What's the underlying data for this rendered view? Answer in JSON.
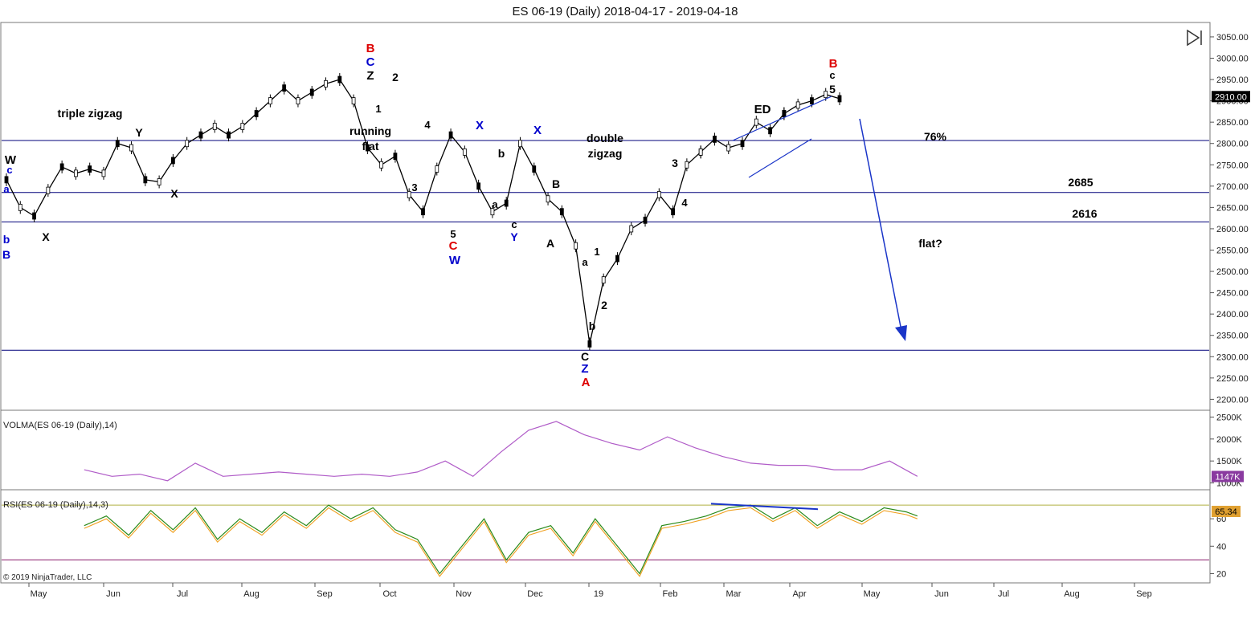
{
  "chart_data": {
    "type": "line",
    "title": "ES 06-19 (Daily)  2018-04-17 - 2019-04-18",
    "copyright": "© 2019 NinjaTrader, LLC",
    "x_ticks": [
      "May",
      "Jun",
      "Jul",
      "Aug",
      "Sep",
      "Oct",
      "Nov",
      "Dec",
      "19",
      "Feb",
      "Mar",
      "Apr",
      "May",
      "Jun",
      "Jul",
      "Aug",
      "Sep"
    ],
    "price_panel": {
      "y_ticks": [
        2200,
        2250,
        2300,
        2350,
        2400,
        2450,
        2500,
        2550,
        2600,
        2650,
        2700,
        2750,
        2800,
        2850,
        2900,
        2950,
        3000,
        3050
      ],
      "ylim": [
        2180,
        3080
      ],
      "last_value_label": "2910.00",
      "last_value": 2910,
      "horizontal_lines": [
        2807,
        2685,
        2616,
        2315
      ],
      "price_series_x": [
        0,
        5,
        10,
        15,
        20,
        25,
        30,
        35,
        40,
        45,
        50,
        55,
        60,
        65,
        70,
        75,
        80,
        85,
        90,
        95,
        100,
        105,
        110,
        115,
        120,
        125,
        130,
        135,
        140,
        145,
        150,
        155,
        160,
        165,
        170,
        175,
        180,
        185,
        190,
        195,
        200,
        205,
        210,
        215,
        220,
        225,
        230,
        235,
        240,
        245,
        250
      ],
      "price_series_y": [
        2715,
        2650,
        2630,
        2690,
        2745,
        2730,
        2740,
        2730,
        2800,
        2790,
        2715,
        2710,
        2760,
        2800,
        2820,
        2840,
        2820,
        2840,
        2870,
        2900,
        2930,
        2900,
        2920,
        2940,
        2950,
        2900,
        2790,
        2750,
        2770,
        2680,
        2640,
        2740,
        2820,
        2780,
        2700,
        2640,
        2660,
        2800,
        2740,
        2670,
        2640,
        2560,
        2330,
        2480,
        2530,
        2600,
        2620,
        2680,
        2640,
        2750,
        2780
      ],
      "price_series2_x": [
        250,
        255,
        260,
        265,
        270,
        275,
        280
      ],
      "price_series2_y": [
        2780,
        2810,
        2790,
        2800,
        2850,
        2830,
        2870
      ],
      "price_series3_x": [
        280,
        285,
        290,
        295,
        300
      ],
      "price_series3_y": [
        2870,
        2890,
        2900,
        2915,
        2905
      ],
      "annotations": [
        {
          "text": "W",
          "color": "#000000"
        },
        {
          "text": "c",
          "color": "#0000cc"
        },
        {
          "text": "a",
          "color": "#0000cc"
        },
        {
          "text": "b",
          "color": "#0000cc"
        },
        {
          "text": "B",
          "color": "#0000cc"
        },
        {
          "text": "X",
          "color": "#000000"
        },
        {
          "text": "triple zigzag",
          "color": "#000000"
        },
        {
          "text": "Y",
          "color": "#000000"
        },
        {
          "text": "X",
          "color": "#000000"
        },
        {
          "text": "B",
          "color": "#dd0000"
        },
        {
          "text": "C",
          "color": "#0000cc"
        },
        {
          "text": "Z",
          "color": "#000000"
        },
        {
          "text": "2",
          "color": "#000000"
        },
        {
          "text": "1",
          "color": "#000000"
        },
        {
          "text": "running",
          "color": "#000000"
        },
        {
          "text": "flat",
          "color": "#000000"
        },
        {
          "text": "4",
          "color": "#000000"
        },
        {
          "text": "3",
          "color": "#000000"
        },
        {
          "text": "5",
          "color": "#000000"
        },
        {
          "text": "C",
          "color": "#dd0000"
        },
        {
          "text": "W",
          "color": "#0000cc"
        },
        {
          "text": "X",
          "color": "#0000cc"
        },
        {
          "text": "b",
          "color": "#000000"
        },
        {
          "text": "a",
          "color": "#000000"
        },
        {
          "text": "c",
          "color": "#000000"
        },
        {
          "text": "Y",
          "color": "#0000cc"
        },
        {
          "text": "X",
          "color": "#0000cc"
        },
        {
          "text": "B",
          "color": "#000000"
        },
        {
          "text": "A",
          "color": "#000000"
        },
        {
          "text": "double",
          "color": "#000000"
        },
        {
          "text": "zigzag",
          "color": "#000000"
        },
        {
          "text": "a",
          "color": "#000000"
        },
        {
          "text": "1",
          "color": "#000000"
        },
        {
          "text": "2",
          "color": "#000000"
        },
        {
          "text": "b",
          "color": "#000000"
        },
        {
          "text": "C",
          "color": "#000000"
        },
        {
          "text": "Z",
          "color": "#0000cc"
        },
        {
          "text": "A",
          "color": "#dd0000"
        },
        {
          "text": "3",
          "color": "#000000"
        },
        {
          "text": "4",
          "color": "#000000"
        },
        {
          "text": "ED",
          "color": "#000000"
        },
        {
          "text": "B",
          "color": "#dd0000"
        },
        {
          "text": "c",
          "color": "#000000"
        },
        {
          "text": "5",
          "color": "#000000"
        },
        {
          "text": "76%",
          "color": "#000000"
        },
        {
          "text": "2685",
          "color": "#000000"
        },
        {
          "text": "2616",
          "color": "#000000"
        },
        {
          "text": "flat?",
          "color": "#000000"
        }
      ]
    },
    "volma_panel": {
      "label": "VOLMA(ES 06-19 (Daily),14)",
      "y_ticks": [
        "2500K",
        "2000K",
        "1500K",
        "1000K"
      ],
      "ylim": [
        900,
        2600
      ],
      "last_value_label": "1147K",
      "last_value": 1147,
      "series_x": [
        0,
        10,
        20,
        30,
        40,
        50,
        60,
        70,
        80,
        90,
        100,
        110,
        120,
        130,
        140,
        150,
        160,
        170,
        180,
        190,
        200,
        210,
        220,
        230,
        240,
        250,
        260,
        270,
        280,
        290,
        300
      ],
      "series_y": [
        1300,
        1150,
        1200,
        1050,
        1450,
        1150,
        1200,
        1250,
        1200,
        1150,
        1200,
        1150,
        1250,
        1500,
        1150,
        1700,
        2200,
        2400,
        2100,
        1900,
        1750,
        2050,
        1800,
        1600,
        1450,
        1400,
        1400,
        1300,
        1300,
        1500,
        1150
      ]
    },
    "rsi_panel": {
      "label": "RSI(ES 06-19 (Daily),14,3)",
      "y_ticks": [
        20,
        40,
        60
      ],
      "ylim": [
        15,
        80
      ],
      "upper_line": 70,
      "lower_line": 30,
      "last_value_label": "65.34",
      "last_value": 65.34,
      "series_x": [
        0,
        8,
        16,
        24,
        32,
        40,
        48,
        56,
        64,
        72,
        80,
        88,
        96,
        104,
        112,
        120,
        128,
        136,
        144,
        152,
        160,
        168,
        176,
        184,
        192,
        200,
        208,
        216,
        224,
        232,
        240,
        248,
        256,
        264,
        272,
        280,
        288,
        296,
        300
      ],
      "series_y": [
        55,
        62,
        48,
        66,
        52,
        68,
        45,
        60,
        50,
        65,
        55,
        70,
        60,
        68,
        52,
        45,
        20,
        40,
        60,
        30,
        50,
        55,
        35,
        60,
        40,
        20,
        55,
        58,
        62,
        68,
        70,
        60,
        68,
        55,
        65,
        58,
        68,
        65,
        62
      ],
      "divergence_line": [
        71,
        67
      ]
    },
    "colors": {
      "price_line": "#000000",
      "grid_line": "#00007a",
      "volma_line": "#b05cc8",
      "rsi_line": "#2a8a1a",
      "rsi_signal": "#f0a020",
      "rsi_upper": "#b0b040",
      "rsi_lower": "#8a1a6a",
      "arrow": "#1a35c8",
      "last_price_bg": "#000000",
      "volma_badge_bg": "#8a3aa0",
      "rsi_badge_bg": "#e0a030"
    }
  }
}
